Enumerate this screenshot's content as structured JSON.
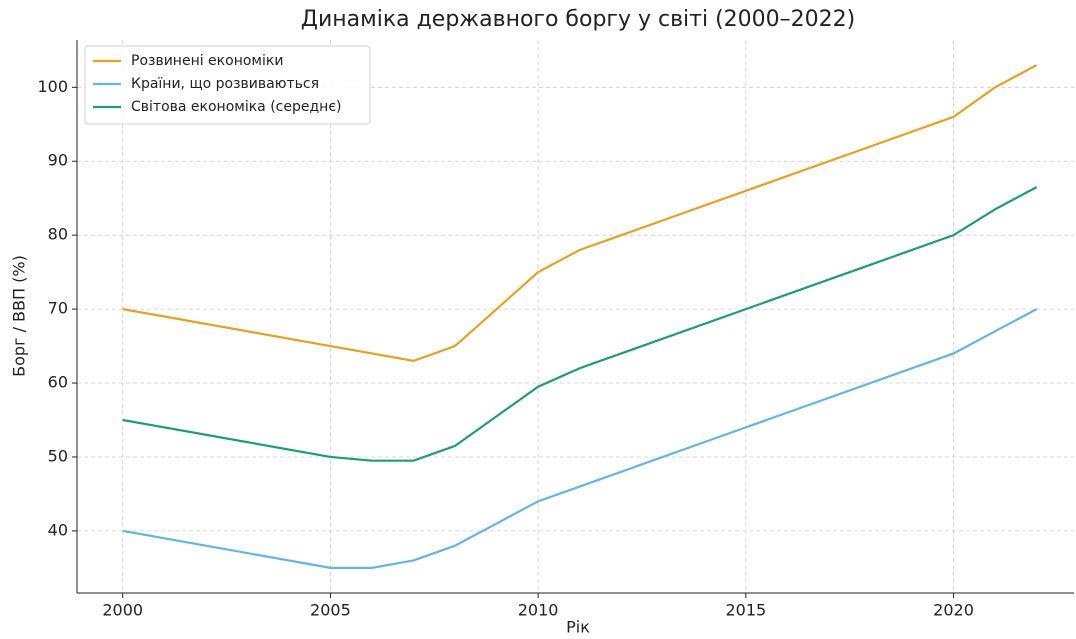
{
  "chart_data": {
    "type": "line",
    "title": "Динаміка державного боргу у світі (2000–2022)",
    "xlabel": "Рік",
    "ylabel": "Борг / ВВП (%)",
    "x": [
      2000,
      2005,
      2006,
      2007,
      2008,
      2010,
      2011,
      2015,
      2020,
      2021,
      2022
    ],
    "series": [
      {
        "name": "Розвинені економіки",
        "color": "#e6a21c",
        "values": [
          70,
          65,
          64,
          63,
          65,
          75,
          78,
          86,
          96,
          100,
          103
        ]
      },
      {
        "name": "Країни, що розвиваються",
        "color": "#62b5e5",
        "values": [
          40,
          35,
          35,
          36,
          38,
          44,
          46,
          54,
          64,
          67,
          70
        ]
      },
      {
        "name": "Світова економіка (середнє)",
        "color": "#1a9e77",
        "values": [
          55,
          50,
          49.5,
          49.5,
          51.5,
          59.5,
          62,
          70,
          80,
          83.5,
          86.5
        ]
      }
    ],
    "xlim": [
      1998.9,
      2022.9
    ],
    "xticks": [
      2000,
      2005,
      2010,
      2015,
      2020
    ],
    "ylim": [
      31.6,
      106.4
    ],
    "yticks": [
      40,
      50,
      60,
      70,
      80,
      90,
      100
    ],
    "grid": true,
    "legend": "upper left"
  }
}
